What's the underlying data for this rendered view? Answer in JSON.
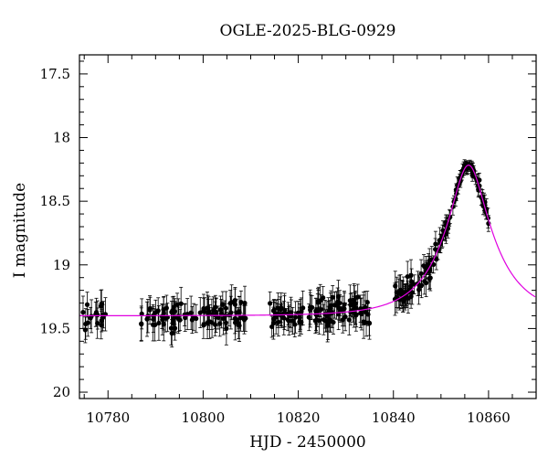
{
  "chart_data": {
    "type": "scatter",
    "title": "OGLE-2025-BLG-0929",
    "xlabel": "HJD - 2450000",
    "ylabel": "I magnitude",
    "xlim": [
      10774,
      10870
    ],
    "ylim": [
      20.05,
      17.35
    ],
    "y_inverted": true,
    "grid": false,
    "xticks": [
      10780,
      10800,
      10820,
      10840,
      10860
    ],
    "yticks": [
      17.5,
      18,
      18.5,
      19,
      19.5,
      20
    ],
    "xtick_labels": [
      "10780",
      "10800",
      "10820",
      "10840",
      "10860"
    ],
    "ytick_labels": [
      "17.5",
      "18",
      "18.5",
      "19",
      "19.5",
      "20"
    ],
    "colors": {
      "data": "#000000",
      "model": "#e000e0",
      "axis": "#000000"
    },
    "series": [
      {
        "kind": "errorbar-points",
        "segments": [
          {
            "x_start": 10774.3,
            "x_end": 10779.6,
            "n": 18
          },
          {
            "x_start": 10786.8,
            "x_end": 10809.3,
            "n": 95
          },
          {
            "x_start": 10814.0,
            "x_end": 10835.6,
            "n": 110
          },
          {
            "x_start": 10840.3,
            "x_end": 10860.0,
            "n": 125
          }
        ],
        "baseline_mag": 19.35,
        "scatter_mag": 0.08,
        "error_mag": 0.11,
        "peak_error_mag": 0.03
      },
      {
        "kind": "model-curve",
        "t0": 10855.8,
        "u0": 0.32,
        "tE": 10.5,
        "baseline_mag": 19.4,
        "fs": 0.88
      }
    ]
  }
}
